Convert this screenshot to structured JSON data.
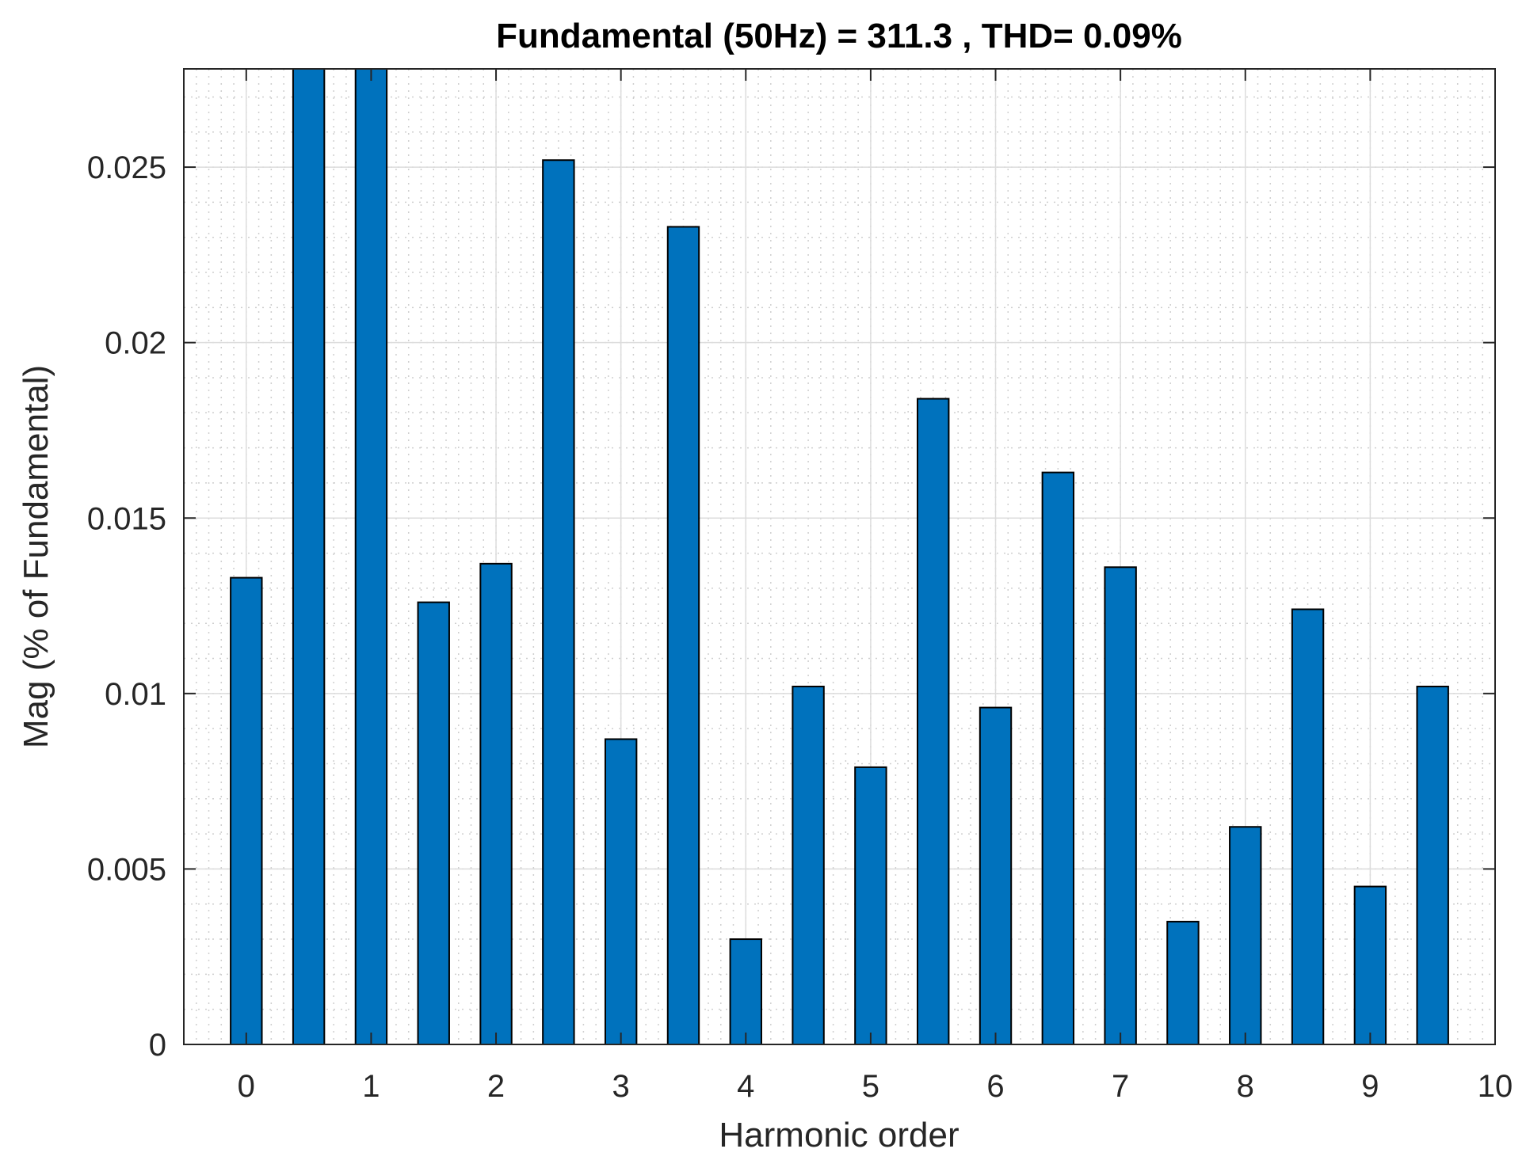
{
  "chart_data": {
    "type": "bar",
    "title": "Fundamental (50Hz) = 311.3 , THD= 0.09%",
    "xlabel": "Harmonic order",
    "ylabel": "Mag (% of Fundamental)",
    "x": [
      0,
      0.5,
      1,
      1.5,
      2,
      2.5,
      3,
      3.5,
      4,
      4.5,
      5,
      5.5,
      6,
      6.5,
      7,
      7.5,
      8,
      8.5,
      9,
      9.5
    ],
    "values": [
      0.0133,
      0.0278,
      0.0278,
      0.0126,
      0.0137,
      0.0252,
      0.0087,
      0.0233,
      0.003,
      0.0102,
      0.0079,
      0.0184,
      0.0096,
      0.0163,
      0.0136,
      0.0035,
      0.0062,
      0.0124,
      0.0045,
      0.0102
    ],
    "xlim": [
      -0.5,
      10
    ],
    "ylim": [
      0,
      0.0278
    ],
    "xticks": [
      "0",
      "1",
      "2",
      "3",
      "4",
      "5",
      "6",
      "7",
      "8",
      "9",
      "10"
    ],
    "yticks": [
      "0",
      "0.005",
      "0.01",
      "0.015",
      "0.02",
      "0.025"
    ],
    "grid": "major and minor",
    "bar_color": "#0072BD"
  }
}
